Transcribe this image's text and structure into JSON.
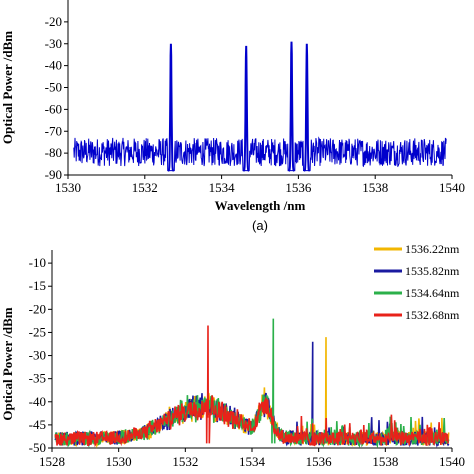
{
  "chart_data": [
    {
      "id": "a",
      "type": "line",
      "panel_label": "(a)",
      "xlabel": "Wavelength /nm",
      "ylabel": "Optical Power /dBm",
      "xlim": [
        1530,
        1540
      ],
      "ylim": [
        -90,
        -10
      ],
      "x_ticks": [
        1530,
        1532,
        1534,
        1536,
        1538,
        1540
      ],
      "y_ticks": [
        -20,
        -30,
        -40,
        -50,
        -60,
        -70,
        -80,
        -90
      ],
      "noise_floor_dbm": -80,
      "noise_band_dbm": [
        -86,
        -73
      ],
      "series": [
        {
          "color": "#0000cc",
          "peaks": [
            {
              "x": 1532.68,
              "y": -30
            },
            {
              "x": 1534.64,
              "y": -31
            },
            {
              "x": 1535.82,
              "y": -29
            },
            {
              "x": 1536.22,
              "y": -30
            }
          ]
        }
      ],
      "legend": "none"
    },
    {
      "id": "b",
      "type": "line",
      "xlabel": "",
      "ylabel": "Optical Power /dBm",
      "xlim": [
        1528,
        1540
      ],
      "ylim": [
        -50,
        -5
      ],
      "x_ticks": [
        1528,
        1530,
        1532,
        1534,
        1536,
        1538,
        1540
      ],
      "y_ticks": [
        -10,
        -15,
        -20,
        -25,
        -30,
        -35,
        -40,
        -45,
        -50
      ],
      "legend": "top-right",
      "series": [
        {
          "name": "1536.22nm",
          "color": "#f2b600",
          "peak": {
            "x": 1536.22,
            "y": -26
          }
        },
        {
          "name": "1535.82nm",
          "color": "#1a1aa0",
          "peak": {
            "x": 1535.82,
            "y": -27
          }
        },
        {
          "name": "1534.64nm",
          "color": "#2bb04a",
          "peak": {
            "x": 1534.64,
            "y": -22
          }
        },
        {
          "name": "1532.68nm",
          "color": "#e8221a",
          "peak": {
            "x": 1532.68,
            "y": -23.5
          }
        }
      ]
    }
  ]
}
